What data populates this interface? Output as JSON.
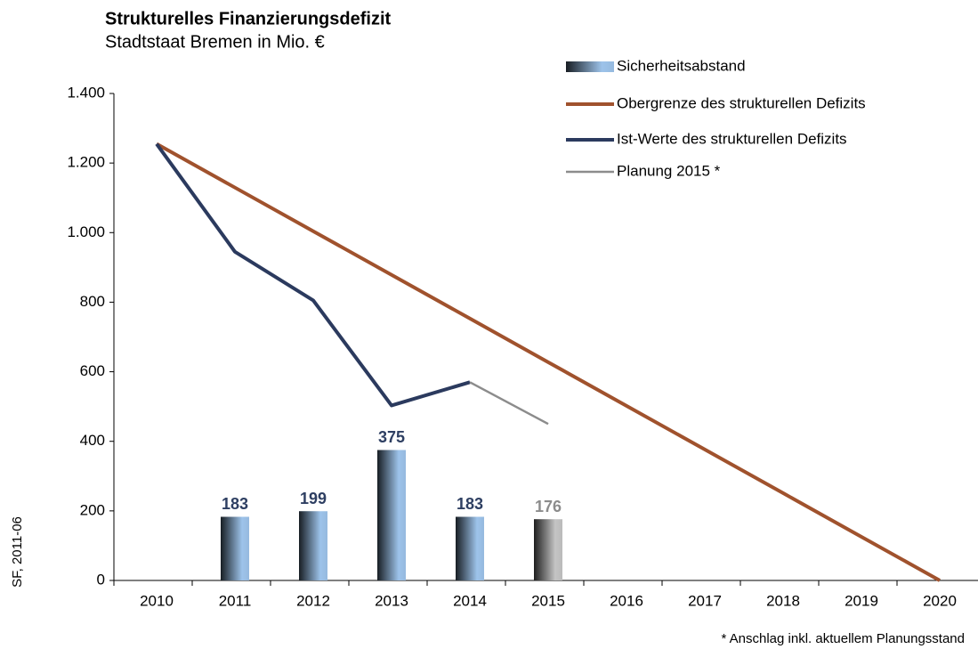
{
  "chart_data": {
    "type": "combo",
    "title": "Strukturelles Finanzierungsdefizit",
    "subtitle": "Stadtstaat Bremen in Mio. €",
    "side_note": "SF, 2011-06",
    "footnote": "* Anschlag inkl. aktuellem Planungsstand",
    "categories": [
      "2010",
      "2011",
      "2012",
      "2013",
      "2014",
      "2015",
      "2016",
      "2017",
      "2018",
      "2019",
      "2020"
    ],
    "ylim": [
      0,
      1400
    ],
    "yticks": [
      0,
      200,
      400,
      600,
      800,
      {
        "value": 1000,
        "label": "1.000"
      },
      {
        "value": 1200,
        "label": "1.200"
      },
      {
        "value": 1400,
        "label": "1.400"
      }
    ],
    "series": [
      {
        "name": "Sicherheitsabstand",
        "type": "bar",
        "color": "#9dc3ea",
        "colors": [
          null,
          "#9dc3ea",
          "#9dc3ea",
          "#9dc3ea",
          "#9dc3ea",
          "#c4c4c4",
          null,
          null,
          null,
          null,
          null
        ],
        "label_colors": [
          null,
          "#2e3f62",
          "#2e3f62",
          "#2e3f62",
          "#2e3f62",
          "#8c8c8c",
          null,
          null,
          null,
          null,
          null
        ],
        "values": [
          null,
          183,
          199,
          375,
          183,
          176,
          null,
          null,
          null,
          null,
          null
        ]
      },
      {
        "name": "Obergrenze des strukturellen Defizits",
        "type": "line",
        "color": "#a0522d",
        "values": [
          1255,
          1129.5,
          1004,
          878.5,
          753,
          627.5,
          502,
          376.5,
          251,
          125.5,
          0
        ]
      },
      {
        "name": "Ist-Werte des strukturellen Defizits",
        "type": "line",
        "color": "#2b3a5e",
        "values": [
          1255,
          945,
          805,
          503,
          570,
          null,
          null,
          null,
          null,
          null,
          null
        ]
      },
      {
        "name": "Planung 2015 *",
        "type": "line",
        "color": "#8c8c8c",
        "values": [
          null,
          null,
          null,
          null,
          570,
          450,
          null,
          null,
          null,
          null,
          null
        ]
      }
    ]
  }
}
